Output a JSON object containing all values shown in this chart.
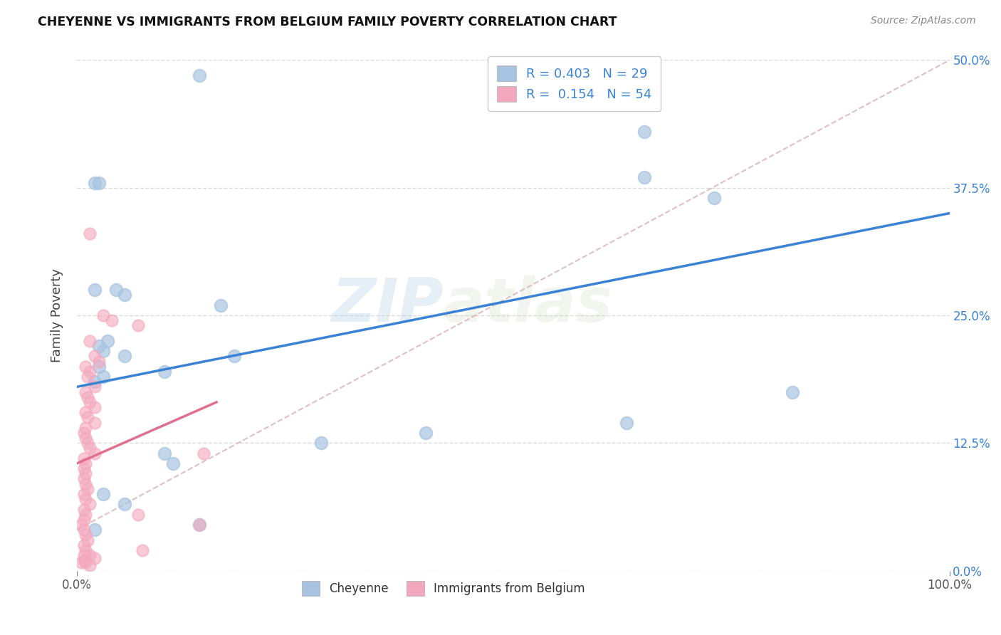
{
  "title": "CHEYENNE VS IMMIGRANTS FROM BELGIUM FAMILY POVERTY CORRELATION CHART",
  "source": "Source: ZipAtlas.com",
  "xlabel": "",
  "ylabel": "Family Poverty",
  "xlim": [
    0,
    100
  ],
  "ylim": [
    0,
    50
  ],
  "ytick_values": [
    0,
    12.5,
    25,
    37.5,
    50
  ],
  "watermark_line1": "ZIP",
  "watermark_line2": "atlas",
  "legend": {
    "cheyenne_R": "0.403",
    "cheyenne_N": "29",
    "belgium_R": "0.154",
    "belgium_N": "54"
  },
  "cheyenne_color": "#a8c4e0",
  "belgium_color": "#f4a8be",
  "cheyenne_line_color": "#3a82d4",
  "belgium_line_color": "#e07090",
  "ref_line_color": "#d8b0b8",
  "background_color": "#ffffff",
  "cheyenne_line": {
    "x0": 0,
    "y0": 18.0,
    "x1": 100,
    "y1": 35.0
  },
  "belgium_line": {
    "x0": 0,
    "y0": 10.5,
    "x1": 16,
    "y1": 16.5
  },
  "ref_line": {
    "x0": 0,
    "y0": 4.0,
    "x1": 100,
    "y1": 50.0
  },
  "cheyenne_points": [
    [
      14,
      48.5
    ],
    [
      2.5,
      38.0
    ],
    [
      65,
      43.0
    ],
    [
      2.0,
      38.0
    ],
    [
      73,
      36.5
    ],
    [
      65,
      38.5
    ],
    [
      2.0,
      27.5
    ],
    [
      4.5,
      27.5
    ],
    [
      5.5,
      27.0
    ],
    [
      16.5,
      26.0
    ],
    [
      3.5,
      22.5
    ],
    [
      2.5,
      22.0
    ],
    [
      3.0,
      21.5
    ],
    [
      5.5,
      21.0
    ],
    [
      18.0,
      21.0
    ],
    [
      2.5,
      20.0
    ],
    [
      10.0,
      19.5
    ],
    [
      3.0,
      19.0
    ],
    [
      2.0,
      18.5
    ],
    [
      82,
      17.5
    ],
    [
      63,
      14.5
    ],
    [
      40,
      13.5
    ],
    [
      28,
      12.5
    ],
    [
      10,
      11.5
    ],
    [
      11,
      10.5
    ],
    [
      3.0,
      7.5
    ],
    [
      5.5,
      6.5
    ],
    [
      14,
      4.5
    ],
    [
      2.0,
      4.0
    ]
  ],
  "belgium_points": [
    [
      1.5,
      33.0
    ],
    [
      3.0,
      25.0
    ],
    [
      4.0,
      24.5
    ],
    [
      7.0,
      24.0
    ],
    [
      1.5,
      22.5
    ],
    [
      2.0,
      21.0
    ],
    [
      2.5,
      20.5
    ],
    [
      1.0,
      20.0
    ],
    [
      1.5,
      19.5
    ],
    [
      1.2,
      19.0
    ],
    [
      2.0,
      18.0
    ],
    [
      1.0,
      17.5
    ],
    [
      1.2,
      17.0
    ],
    [
      1.5,
      16.5
    ],
    [
      2.0,
      16.0
    ],
    [
      1.0,
      15.5
    ],
    [
      1.2,
      15.0
    ],
    [
      2.0,
      14.5
    ],
    [
      1.0,
      14.0
    ],
    [
      0.8,
      13.5
    ],
    [
      1.0,
      13.0
    ],
    [
      1.2,
      12.5
    ],
    [
      1.5,
      12.0
    ],
    [
      2.0,
      11.5
    ],
    [
      0.8,
      11.0
    ],
    [
      1.0,
      10.5
    ],
    [
      0.8,
      10.0
    ],
    [
      1.0,
      9.5
    ],
    [
      0.8,
      9.0
    ],
    [
      1.0,
      8.5
    ],
    [
      1.2,
      8.0
    ],
    [
      0.8,
      7.5
    ],
    [
      1.0,
      7.0
    ],
    [
      1.5,
      6.5
    ],
    [
      0.8,
      6.0
    ],
    [
      1.0,
      5.5
    ],
    [
      0.8,
      5.0
    ],
    [
      0.5,
      4.5
    ],
    [
      0.8,
      4.0
    ],
    [
      1.0,
      3.5
    ],
    [
      1.2,
      3.0
    ],
    [
      0.8,
      2.5
    ],
    [
      1.0,
      2.0
    ],
    [
      1.5,
      1.5
    ],
    [
      2.0,
      1.2
    ],
    [
      0.8,
      1.0
    ],
    [
      1.0,
      0.8
    ],
    [
      1.5,
      0.5
    ],
    [
      0.5,
      0.8
    ],
    [
      0.8,
      1.5
    ],
    [
      7.0,
      5.5
    ],
    [
      7.5,
      2.0
    ],
    [
      14.0,
      4.5
    ],
    [
      14.5,
      11.5
    ]
  ]
}
